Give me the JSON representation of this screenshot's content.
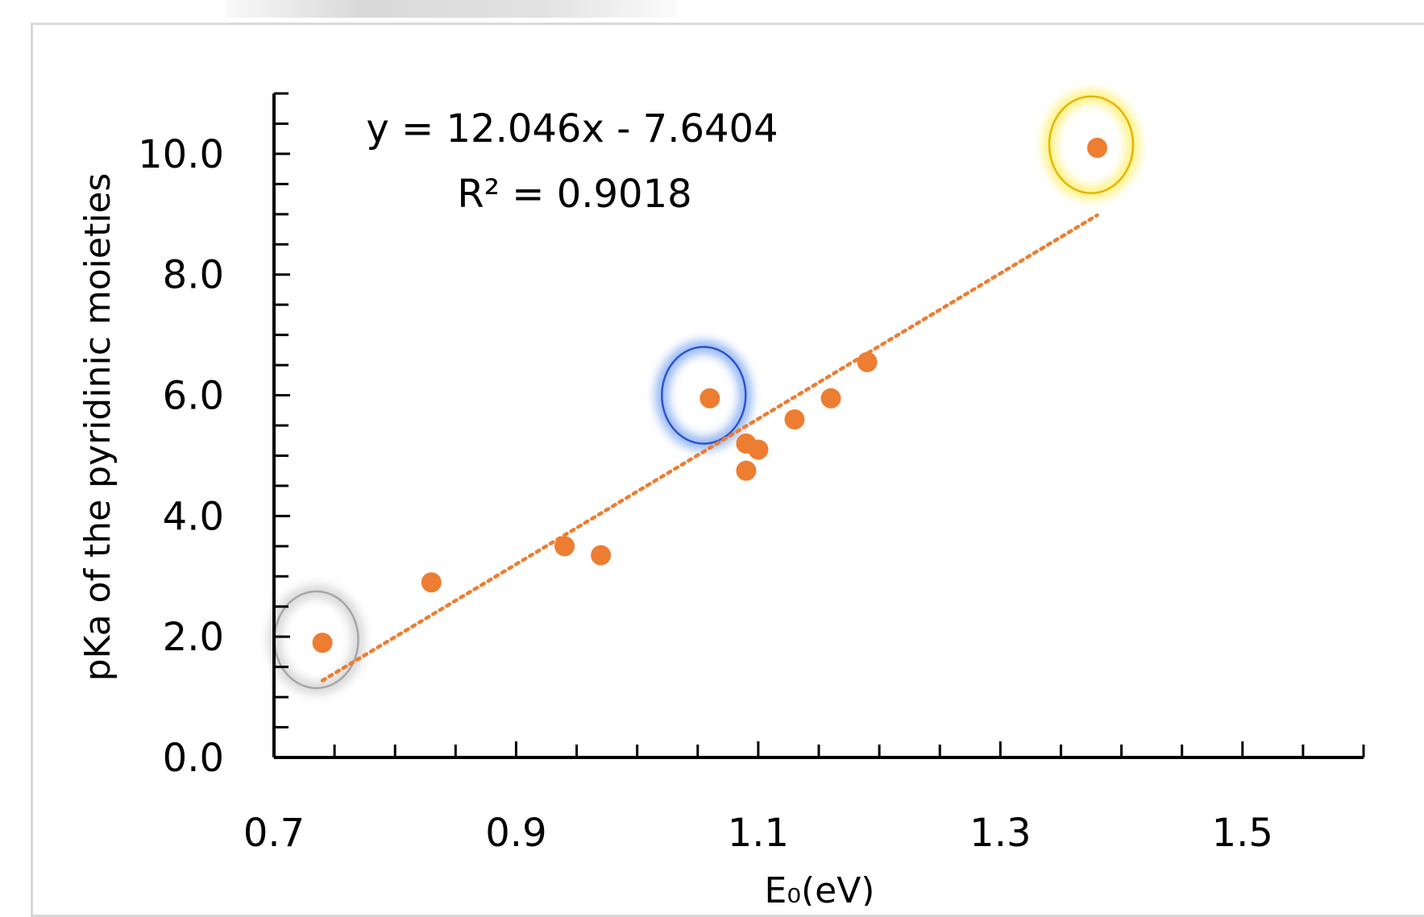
{
  "chart_data": {
    "type": "scatter",
    "title": "",
    "xlabel": "E₀(eV)",
    "ylabel": "pKa of the pyridinic moieties",
    "xlim": [
      0.7,
      1.6
    ],
    "ylim": [
      0.0,
      11.0
    ],
    "x_ticks": [
      "0.7",
      "0.9",
      "1.1",
      "1.3",
      "1.5"
    ],
    "x_tick_values": [
      0.7,
      0.9,
      1.1,
      1.3,
      1.5
    ],
    "y_ticks": [
      "0.0",
      "2.0",
      "4.0",
      "6.0",
      "8.0",
      "10.0"
    ],
    "y_tick_values": [
      0,
      2,
      4,
      6,
      8,
      10
    ],
    "series": [
      {
        "points": [
          {
            "x": 0.74,
            "y": 1.9
          },
          {
            "x": 0.83,
            "y": 2.9
          },
          {
            "x": 0.94,
            "y": 3.5
          },
          {
            "x": 0.97,
            "y": 3.35
          },
          {
            "x": 1.06,
            "y": 5.95
          },
          {
            "x": 1.09,
            "y": 5.2
          },
          {
            "x": 1.09,
            "y": 4.75
          },
          {
            "x": 1.1,
            "y": 5.1
          },
          {
            "x": 1.13,
            "y": 5.6
          },
          {
            "x": 1.16,
            "y": 5.95
          },
          {
            "x": 1.19,
            "y": 6.55
          },
          {
            "x": 1.38,
            "y": 10.1
          }
        ],
        "color": "#ed7d31"
      }
    ],
    "trendline": {
      "slope": 12.046,
      "intercept": -7.6404,
      "x_range": [
        0.74,
        1.38
      ],
      "style": "dotted",
      "color": "#ed7d31"
    },
    "annotations": {
      "equation": "y = 12.046x - 7.6404",
      "r_squared": "R² = 0.9018"
    },
    "highlights": [
      {
        "x": 0.735,
        "y": 1.95,
        "color": "#a6a6a6",
        "glow": "#d0d0d0"
      },
      {
        "x": 1.055,
        "y": 6.0,
        "color": "#2f55c8",
        "glow": "#7fa8f0"
      },
      {
        "x": 1.375,
        "y": 10.15,
        "color": "#e8b300",
        "glow": "#fff06a"
      }
    ],
    "grid": false,
    "legend": "none"
  }
}
